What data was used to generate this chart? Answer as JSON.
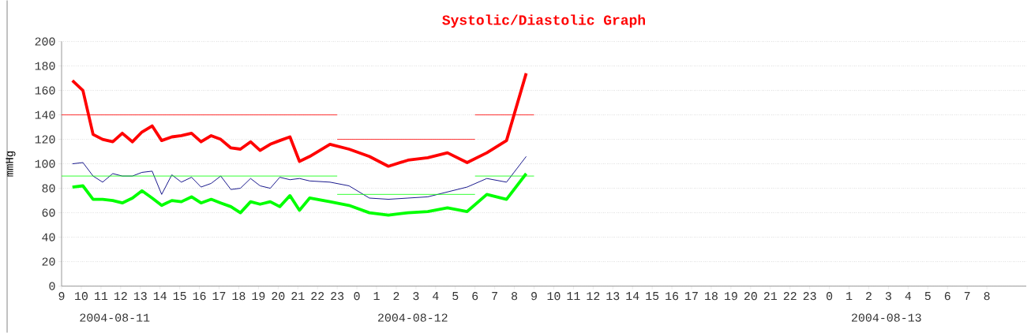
{
  "chart_data": {
    "type": "line",
    "title": "Systolic/Diastolic Graph",
    "ylabel": "mmHg",
    "xlim": [
      "2004-08-11T09:00",
      "2004-08-13T10:00"
    ],
    "ylim": [
      0,
      200
    ],
    "yticks": [
      0,
      20,
      40,
      60,
      80,
      100,
      120,
      140,
      160,
      180,
      200
    ],
    "xticks": [
      {
        "value": "2004-08-11T09:00",
        "label": "9"
      },
      {
        "value": "2004-08-11T10:00",
        "label": "10"
      },
      {
        "value": "2004-08-11T11:00",
        "label": "11"
      },
      {
        "value": "2004-08-11T12:00",
        "label": "12"
      },
      {
        "value": "2004-08-11T13:00",
        "label": "13"
      },
      {
        "value": "2004-08-11T14:00",
        "label": "14"
      },
      {
        "value": "2004-08-11T15:00",
        "label": "15"
      },
      {
        "value": "2004-08-11T16:00",
        "label": "16"
      },
      {
        "value": "2004-08-11T17:00",
        "label": "17"
      },
      {
        "value": "2004-08-11T18:00",
        "label": "18"
      },
      {
        "value": "2004-08-11T19:00",
        "label": "19"
      },
      {
        "value": "2004-08-11T20:00",
        "label": "20"
      },
      {
        "value": "2004-08-11T21:00",
        "label": "21"
      },
      {
        "value": "2004-08-11T22:00",
        "label": "22"
      },
      {
        "value": "2004-08-11T23:00",
        "label": "23"
      },
      {
        "value": "2004-08-12T00:00",
        "label": "0"
      },
      {
        "value": "2004-08-12T01:00",
        "label": "1"
      },
      {
        "value": "2004-08-12T02:00",
        "label": "2"
      },
      {
        "value": "2004-08-12T03:00",
        "label": "3"
      },
      {
        "value": "2004-08-12T04:00",
        "label": "4"
      },
      {
        "value": "2004-08-12T05:00",
        "label": "5"
      },
      {
        "value": "2004-08-12T06:00",
        "label": "6"
      },
      {
        "value": "2004-08-12T07:00",
        "label": "7"
      },
      {
        "value": "2004-08-12T08:00",
        "label": "8"
      },
      {
        "value": "2004-08-12T09:00",
        "label": "9"
      },
      {
        "value": "2004-08-12T10:00",
        "label": "10"
      },
      {
        "value": "2004-08-12T11:00",
        "label": "11"
      },
      {
        "value": "2004-08-12T12:00",
        "label": "12"
      },
      {
        "value": "2004-08-12T13:00",
        "label": "13"
      },
      {
        "value": "2004-08-12T14:00",
        "label": "14"
      },
      {
        "value": "2004-08-12T15:00",
        "label": "15"
      },
      {
        "value": "2004-08-12T16:00",
        "label": "16"
      },
      {
        "value": "2004-08-12T17:00",
        "label": "17"
      },
      {
        "value": "2004-08-12T18:00",
        "label": "18"
      },
      {
        "value": "2004-08-12T19:00",
        "label": "19"
      },
      {
        "value": "2004-08-12T20:00",
        "label": "20"
      },
      {
        "value": "2004-08-12T21:00",
        "label": "21"
      },
      {
        "value": "2004-08-12T22:00",
        "label": "22"
      },
      {
        "value": "2004-08-12T23:00",
        "label": "23"
      },
      {
        "value": "2004-08-13T00:00",
        "label": "0"
      },
      {
        "value": "2004-08-13T01:00",
        "label": "1"
      },
      {
        "value": "2004-08-13T02:00",
        "label": "2"
      },
      {
        "value": "2004-08-13T03:00",
        "label": "3"
      },
      {
        "value": "2004-08-13T04:00",
        "label": "4"
      },
      {
        "value": "2004-08-13T05:00",
        "label": "5"
      },
      {
        "value": "2004-08-13T06:00",
        "label": "6"
      },
      {
        "value": "2004-08-13T07:00",
        "label": "7"
      },
      {
        "value": "2004-08-13T08:00",
        "label": "8"
      }
    ],
    "grid": "y",
    "marker": "none",
    "line_style": "solid",
    "annotations": [
      "2004-08-11",
      "2004-08-12",
      "2004-08-13"
    ],
    "x": [
      "2004-08-11T09:33",
      "2004-08-11T10:05",
      "2004-08-11T10:36",
      "2004-08-11T11:05",
      "2004-08-11T11:36",
      "2004-08-11T12:05",
      "2004-08-11T12:36",
      "2004-08-11T13:05",
      "2004-08-11T13:36",
      "2004-08-11T14:05",
      "2004-08-11T14:36",
      "2004-08-11T15:05",
      "2004-08-11T15:36",
      "2004-08-11T16:05",
      "2004-08-11T16:36",
      "2004-08-11T17:05",
      "2004-08-11T17:36",
      "2004-08-11T18:05",
      "2004-08-11T18:36",
      "2004-08-11T19:05",
      "2004-08-11T19:36",
      "2004-08-11T20:05",
      "2004-08-11T20:36",
      "2004-08-11T21:05",
      "2004-08-11T21:36",
      "2004-08-11T22:38",
      "2004-08-11T23:36",
      "2004-08-12T00:38",
      "2004-08-12T01:36",
      "2004-08-12T02:36",
      "2004-08-12T03:36",
      "2004-08-12T04:36",
      "2004-08-12T05:36",
      "2004-08-12T06:36",
      "2004-08-12T07:36",
      "2004-08-12T08:36"
    ],
    "series": [
      {
        "color": "#ff0000",
        "values": [
          168,
          160,
          124,
          120,
          118,
          125,
          118,
          126,
          131,
          119,
          122,
          123,
          125,
          118,
          123,
          120,
          113,
          112,
          118,
          111,
          116,
          119,
          122,
          102,
          106,
          116,
          112,
          106,
          98,
          103,
          105,
          109,
          101,
          109,
          119,
          174
        ]
      },
      {
        "color": "#00ff00",
        "values": [
          81,
          82,
          71,
          71,
          70,
          68,
          72,
          78,
          72,
          66,
          70,
          69,
          73,
          68,
          71,
          68,
          65,
          60,
          69,
          67,
          69,
          65,
          74,
          62,
          72,
          69,
          66,
          60,
          58,
          60,
          61,
          64,
          61,
          75,
          71,
          92
        ]
      },
      {
        "color": "#000080",
        "values": [
          100,
          101,
          90,
          85,
          92,
          90,
          90,
          93,
          94,
          75,
          91,
          85,
          89,
          81,
          84,
          90,
          79,
          80,
          88,
          82,
          80,
          89,
          87,
          88,
          86,
          85,
          82,
          72,
          71,
          72,
          73,
          77,
          81,
          88,
          85,
          106
        ]
      },
      {
        "color": "#ff0000",
        "x": [
          "2004-08-11T09:00",
          "2004-08-11T23:00",
          null,
          "2004-08-11T23:00",
          "2004-08-12T06:00",
          null,
          "2004-08-12T06:00",
          "2004-08-12T09:00"
        ],
        "values": [
          140,
          140,
          null,
          120,
          120,
          null,
          140,
          140
        ]
      },
      {
        "color": "#00ff00",
        "x": [
          "2004-08-11T09:00",
          "2004-08-11T23:00",
          null,
          "2004-08-11T23:00",
          "2004-08-12T06:00",
          null,
          "2004-08-12T06:00",
          "2004-08-12T09:00"
        ],
        "values": [
          90,
          90,
          null,
          75,
          75,
          null,
          90,
          90
        ]
      }
    ]
  }
}
